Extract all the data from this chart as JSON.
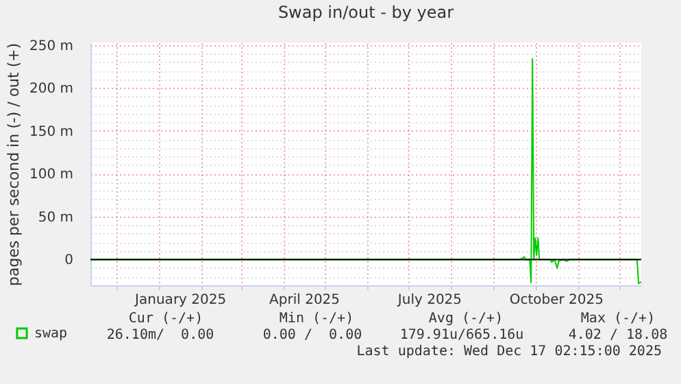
{
  "chart_data": {
    "type": "line",
    "title": "Swap in/out - by year",
    "ylabel": "pages per second in (-) / out (+)",
    "xlim": [
      "2024-11-12",
      "2025-12-17"
    ],
    "ylim": [
      -30,
      253
    ],
    "xticks": [
      {
        "value": "2024-12-01",
        "label": null
      },
      {
        "value": "2025-01-01",
        "label": null
      },
      {
        "value": "2025-01-16",
        "label": "January 2025"
      },
      {
        "value": "2025-02-01",
        "label": null
      },
      {
        "value": "2025-03-01",
        "label": null
      },
      {
        "value": "2025-04-01",
        "label": null
      },
      {
        "value": "2025-04-16",
        "label": "April 2025"
      },
      {
        "value": "2025-05-01",
        "label": null
      },
      {
        "value": "2025-06-01",
        "label": null
      },
      {
        "value": "2025-07-01",
        "label": null
      },
      {
        "value": "2025-07-16",
        "label": "July 2025"
      },
      {
        "value": "2025-08-01",
        "label": null
      },
      {
        "value": "2025-09-01",
        "label": null
      },
      {
        "value": "2025-10-01",
        "label": null
      },
      {
        "value": "2025-10-16",
        "label": "October 2025"
      },
      {
        "value": "2025-11-01",
        "label": null
      },
      {
        "value": "2025-12-01",
        "label": null
      }
    ],
    "yticks": [
      {
        "value": -20,
        "label": null
      },
      {
        "value": -10,
        "label": null
      },
      0,
      {
        "value": 10,
        "label": null
      },
      {
        "value": 20,
        "label": null
      },
      {
        "value": 30,
        "label": null
      },
      {
        "value": 40,
        "label": null
      },
      {
        "value": 50,
        "label": "50 m"
      },
      {
        "value": 60,
        "label": null
      },
      {
        "value": 70,
        "label": null
      },
      {
        "value": 80,
        "label": null
      },
      {
        "value": 90,
        "label": null
      },
      {
        "value": 100,
        "label": "100 m"
      },
      {
        "value": 110,
        "label": null
      },
      {
        "value": 120,
        "label": null
      },
      {
        "value": 130,
        "label": null
      },
      {
        "value": 140,
        "label": null
      },
      {
        "value": 150,
        "label": "150 m"
      },
      {
        "value": 160,
        "label": null
      },
      {
        "value": 170,
        "label": null
      },
      {
        "value": 180,
        "label": null
      },
      {
        "value": 190,
        "label": null
      },
      {
        "value": 200,
        "label": "200 m"
      },
      {
        "value": 210,
        "label": null
      },
      {
        "value": 220,
        "label": null
      },
      {
        "value": 230,
        "label": null
      },
      {
        "value": 240,
        "label": null
      },
      {
        "value": 250,
        "label": "250 m"
      }
    ],
    "grid": true,
    "legend": "bottom left",
    "ref_lines": [
      {
        "axis": "y",
        "value": 0,
        "color": "#000000"
      }
    ],
    "series": [
      {
        "name": "swap",
        "color": "#00cc00",
        "x": [
          "2024-11-12",
          "2025-09-20",
          "2025-09-23",
          "2025-09-24",
          "2025-09-27",
          "2025-09-28",
          "2025-09-29",
          "2025-09-30",
          "2025-10-01",
          "2025-10-02",
          "2025-10-03",
          "2025-10-04",
          "2025-10-12",
          "2025-10-13",
          "2025-10-15",
          "2025-10-17",
          "2025-10-18",
          "2025-10-21",
          "2025-10-24",
          "2025-10-26",
          "2025-12-14",
          "2025-12-15",
          "2025-12-17"
        ],
        "values": [
          0,
          0,
          3,
          0,
          0,
          -27,
          234,
          0,
          25,
          5,
          25,
          0,
          0,
          -3,
          0,
          -10,
          -2,
          0,
          -2,
          0,
          0,
          -28,
          -26
        ]
      }
    ],
    "annotations": [
      "Cur (-/+)",
      "Min (-/+)",
      "Avg (-/+)",
      "Max (-/+)",
      "26.10m/  0.00",
      "0.00 /  0.00",
      "179.91u/665.16u",
      "4.02 / 18.08",
      "Last update: Wed Dec 17 02:15:00 2025"
    ]
  }
}
